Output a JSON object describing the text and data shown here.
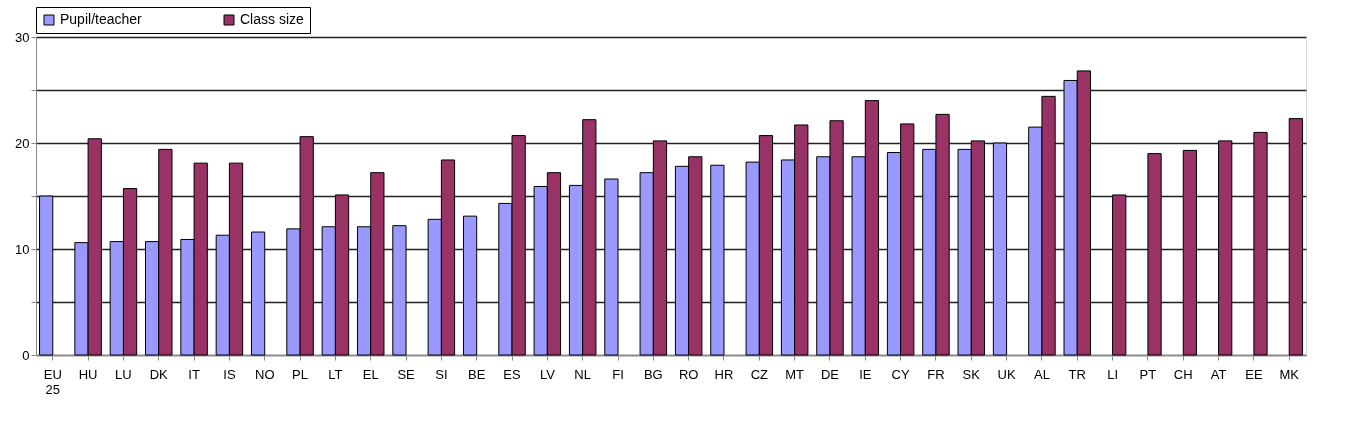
{
  "chart_data": {
    "type": "bar",
    "categories": [
      "EU 25",
      "HU",
      "LU",
      "DK",
      "IT",
      "IS",
      "NO",
      "PL",
      "LT",
      "EL",
      "SE",
      "SI",
      "BE",
      "ES",
      "LV",
      "NL",
      "FI",
      "BG",
      "RO",
      "HR",
      "CZ",
      "MT",
      "DE",
      "IE",
      "CY",
      "FR",
      "SK",
      "UK",
      "AL",
      "TR",
      "LI",
      "PT",
      "CH",
      "AT",
      "EE",
      "MK"
    ],
    "series": [
      {
        "name": "Pupil/teacher",
        "color": "#9999ff",
        "values": [
          15.0,
          10.6,
          10.7,
          10.7,
          10.9,
          11.3,
          11.6,
          11.9,
          12.1,
          12.1,
          12.2,
          12.8,
          13.1,
          14.3,
          15.9,
          16.0,
          16.6,
          17.2,
          17.8,
          17.9,
          18.2,
          18.4,
          18.7,
          18.7,
          19.1,
          19.4,
          19.4,
          20.0,
          21.5,
          25.9,
          null,
          null,
          null,
          null,
          null,
          null
        ]
      },
      {
        "name": "Class size",
        "color": "#993366",
        "values": [
          null,
          20.4,
          15.7,
          19.4,
          18.1,
          18.1,
          null,
          20.6,
          15.1,
          17.2,
          null,
          18.4,
          null,
          20.7,
          17.2,
          22.2,
          null,
          20.2,
          18.7,
          null,
          20.7,
          21.7,
          22.1,
          24.0,
          21.8,
          22.7,
          20.2,
          null,
          24.4,
          26.8,
          15.1,
          19.0,
          19.3,
          20.2,
          21.0,
          22.3
        ]
      }
    ],
    "ylim": [
      0,
      30
    ],
    "yticks": [
      0,
      {
        "value": 5,
        "label": null
      },
      10,
      {
        "value": 15,
        "label": null
      },
      20,
      {
        "value": 25,
        "label": null
      },
      30
    ],
    "grid": "y",
    "legend": "top"
  }
}
